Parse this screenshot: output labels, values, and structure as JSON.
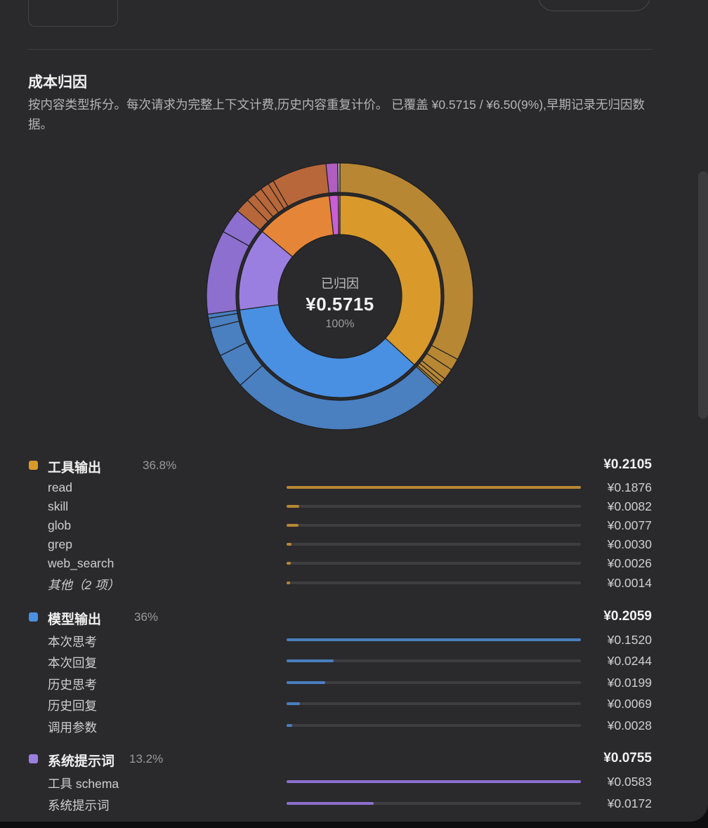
{
  "section": {
    "title": "成本归因",
    "description": "按内容类型拆分。每次请求为完整上下文计费,历史内容重复计价。 已覆盖 ¥0.5715 / ¥6.50(9%),早期记录无归因数据。"
  },
  "center": {
    "label": "已归因",
    "value": "¥0.5715",
    "percent": "100%"
  },
  "groups": [
    {
      "name": "工具输出",
      "percent": "36.8%",
      "value": "¥0.2105",
      "color": "#d99a2b",
      "bar_color": "#b88734",
      "amount": 0.2105,
      "items": [
        {
          "name": "read",
          "value": "¥0.1876",
          "amount": 0.1876
        },
        {
          "name": "skill",
          "value": "¥0.0082",
          "amount": 0.0082
        },
        {
          "name": "glob",
          "value": "¥0.0077",
          "amount": 0.0077
        },
        {
          "name": "grep",
          "value": "¥0.0030",
          "amount": 0.003
        },
        {
          "name": "web_search",
          "value": "¥0.0026",
          "amount": 0.0026
        },
        {
          "name": "其他（2 项）",
          "value": "¥0.0014",
          "amount": 0.0014,
          "italic": true
        }
      ]
    },
    {
      "name": "模型输出",
      "percent": "36%",
      "value": "¥0.2059",
      "color": "#4a90e2",
      "bar_color": "#4a7fc0",
      "amount": 0.2059,
      "items": [
        {
          "name": "本次思考",
          "value": "¥0.1520",
          "amount": 0.152
        },
        {
          "name": "本次回复",
          "value": "¥0.0244",
          "amount": 0.0244
        },
        {
          "name": "历史思考",
          "value": "¥0.0199",
          "amount": 0.0199
        },
        {
          "name": "历史回复",
          "value": "¥0.0069",
          "amount": 0.0069
        },
        {
          "name": "调用参数",
          "value": "¥0.0028",
          "amount": 0.0028
        }
      ]
    },
    {
      "name": "系统提示词",
      "percent": "13.2%",
      "value": "¥0.0755",
      "color": "#9b7fe0",
      "bar_color": "#8c6fcf",
      "amount": 0.0755,
      "items": [
        {
          "name": "工具 schema",
          "value": "¥0.0583",
          "amount": 0.0583
        },
        {
          "name": "系统提示词",
          "value": "¥0.0172",
          "amount": 0.0172
        }
      ]
    }
  ],
  "hidden_segments": [
    {
      "color": "#e58538",
      "outer_color": "#b8673a",
      "amount": 0.07,
      "items": [
        0.01,
        0.006,
        0.006,
        0.006,
        0.004,
        0.038
      ]
    },
    {
      "color": "#c85fd6",
      "outer_color": "#b05ec0",
      "amount": 0.008,
      "items": [
        0.008
      ]
    },
    {
      "color": "#d07acb",
      "outer_color": "#aaa",
      "amount": 0.0016,
      "items": [
        0.0016
      ]
    }
  ]
}
